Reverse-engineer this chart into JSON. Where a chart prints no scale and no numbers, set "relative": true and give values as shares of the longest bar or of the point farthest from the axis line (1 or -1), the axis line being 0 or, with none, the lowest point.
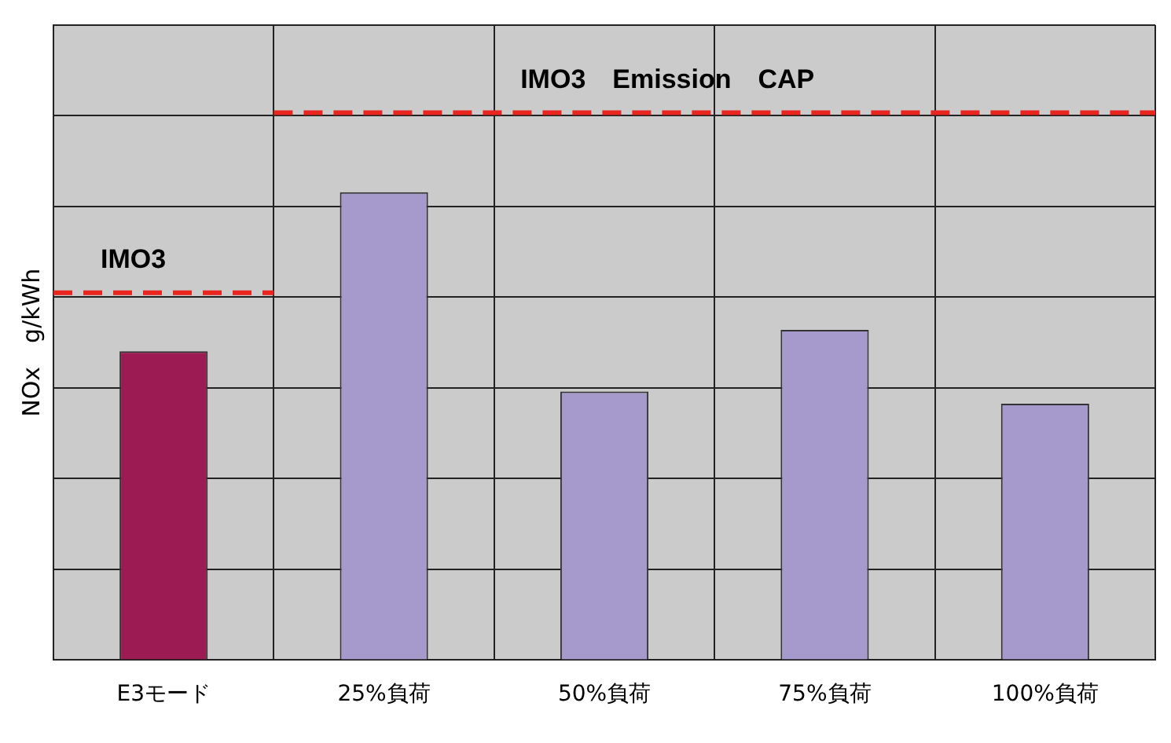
{
  "chart_data": {
    "type": "bar",
    "relative": true,
    "categories": [
      "E3モード",
      "25%負荷",
      "50%負荷",
      "75%負荷",
      "100%負荷"
    ],
    "values": [
      0.66,
      1,
      0.574,
      0.706,
      0.548
    ],
    "colors": [
      "#9b1b52",
      "#a59acb",
      "#a59acb",
      "#a59acb",
      "#a59acb"
    ],
    "ylabel": "NOx　g/kWh",
    "grid": true,
    "ref_lines": [
      {
        "axis": "y",
        "value": 0.785,
        "label": "IMO3",
        "color": "#e8251f",
        "line_style": "dashed"
      },
      {
        "axis": "y",
        "value": 1.17,
        "label": "IMO3　Emission　CAP",
        "color": "#e8251f",
        "line_style": "dashed"
      }
    ]
  }
}
